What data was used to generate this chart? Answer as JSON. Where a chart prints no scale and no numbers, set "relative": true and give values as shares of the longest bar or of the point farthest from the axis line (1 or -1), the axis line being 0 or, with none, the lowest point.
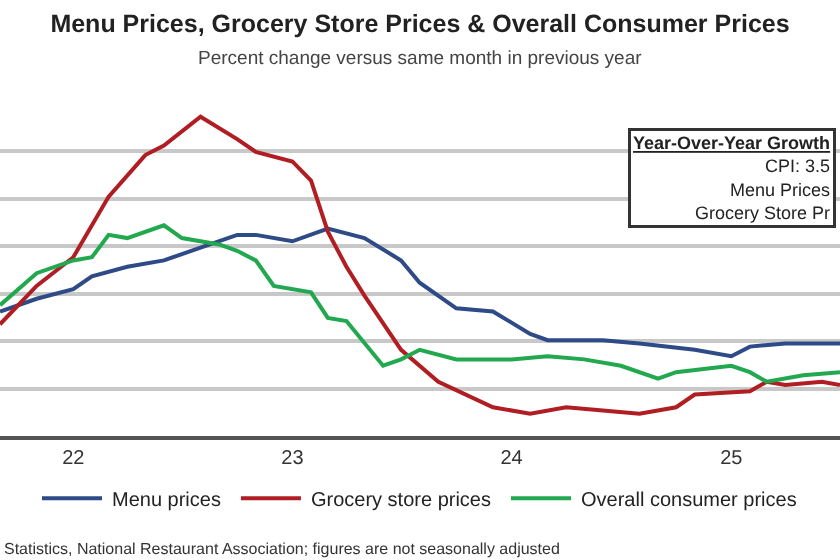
{
  "chart_data": {
    "type": "line",
    "title": "Menu Prices, Grocery Store Prices & Overall Consumer Prices",
    "subtitle": "Percent change versus same month in previous year",
    "relative": true,
    "grid": "y",
    "legend": "bottom",
    "line_style": "solid",
    "marker": "none",
    "xlim": [
      "2021-09",
      "2025-07"
    ],
    "xticks": [
      {
        "value": "2022-01",
        "label": "22"
      },
      {
        "value": "2023-01",
        "label": "23"
      },
      {
        "value": "2024-01",
        "label": "24"
      },
      {
        "value": "2025-01",
        "label": "25"
      }
    ],
    "series": [
      {
        "name": "Menu prices",
        "color": "#2e4a87",
        "x": [
          "2021-09",
          "2021-11",
          "2022-01",
          "2022-02",
          "2022-04",
          "2022-06",
          "2022-07",
          "2022-08",
          "2022-10",
          "2022-11",
          "2023-01",
          "2023-03",
          "2023-05",
          "2023-07",
          "2023-08",
          "2023-10",
          "2023-12",
          "2024-02",
          "2024-03",
          "2024-06",
          "2024-08",
          "2024-11",
          "2025-01",
          "2025-02",
          "2025-04",
          "2025-07"
        ],
        "values": [
          0.39,
          0.43,
          0.46,
          0.5,
          0.53,
          0.55,
          0.57,
          0.59,
          0.63,
          0.63,
          0.61,
          0.65,
          0.62,
          0.55,
          0.48,
          0.4,
          0.39,
          0.32,
          0.3,
          0.3,
          0.29,
          0.27,
          0.25,
          0.28,
          0.29,
          0.29
        ]
      },
      {
        "name": "Grocery store prices",
        "color": "#b01e23",
        "x": [
          "2021-09",
          "2021-11",
          "2022-01",
          "2022-03",
          "2022-05",
          "2022-06",
          "2022-08",
          "2022-10",
          "2022-11",
          "2023-01",
          "2023-02",
          "2023-03",
          "2023-04",
          "2023-05",
          "2023-07",
          "2023-09",
          "2023-12",
          "2024-02",
          "2024-04",
          "2024-06",
          "2024-08",
          "2024-10",
          "2024-11",
          "2025-02",
          "2025-03",
          "2025-04",
          "2025-06",
          "2025-07"
        ],
        "values": [
          0.35,
          0.47,
          0.56,
          0.75,
          0.88,
          0.91,
          1.0,
          0.93,
          0.89,
          0.86,
          0.8,
          0.64,
          0.53,
          0.44,
          0.27,
          0.17,
          0.09,
          0.07,
          0.09,
          0.08,
          0.07,
          0.09,
          0.13,
          0.14,
          0.17,
          0.16,
          0.17,
          0.16
        ]
      },
      {
        "name": "Overall consumer prices",
        "color": "#22a84f",
        "x": [
          "2021-09",
          "2021-11",
          "2022-01",
          "2022-02",
          "2022-03",
          "2022-04",
          "2022-06",
          "2022-07",
          "2022-09",
          "2022-10",
          "2022-11",
          "2022-12",
          "2023-02",
          "2023-03",
          "2023-04",
          "2023-06",
          "2023-07",
          "2023-08",
          "2023-10",
          "2023-12",
          "2024-01",
          "2024-03",
          "2024-05",
          "2024-07",
          "2024-09",
          "2024-10",
          "2025-01",
          "2025-02",
          "2025-03",
          "2025-05",
          "2025-07"
        ],
        "values": [
          0.41,
          0.51,
          0.55,
          0.56,
          0.63,
          0.62,
          0.66,
          0.62,
          0.6,
          0.58,
          0.55,
          0.47,
          0.45,
          0.37,
          0.36,
          0.22,
          0.24,
          0.27,
          0.24,
          0.24,
          0.24,
          0.25,
          0.24,
          0.22,
          0.18,
          0.2,
          0.22,
          0.2,
          0.17,
          0.19,
          0.2
        ]
      }
    ],
    "annotations": [
      "Year-Over-Year Growth",
      "CPI: 3.5",
      "Menu Prices",
      "Grocery Store Pr",
      "Statistics, National Restaurant Association; figures are not seasonally adjusted"
    ]
  }
}
